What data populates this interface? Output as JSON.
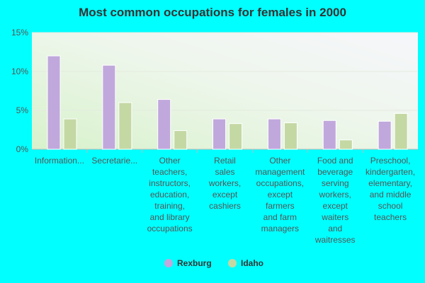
{
  "chart_data": {
    "type": "bar",
    "title": "Most common occupations for females in 2000",
    "xlabel": "",
    "ylabel": "",
    "ylim": [
      0,
      15
    ],
    "yticks": [
      0,
      5,
      10,
      15
    ],
    "ytick_labels": [
      "0%",
      "5%",
      "10%",
      "15%"
    ],
    "grid": true,
    "legend_position": "bottom-center",
    "categories": [
      [
        "Information..."
      ],
      [
        "Secretarie..."
      ],
      [
        "Other",
        "teachers,",
        "instructors,",
        "education,",
        "training,",
        "and library",
        "occupations"
      ],
      [
        "Retail",
        "sales",
        "workers,",
        "except",
        "cashiers"
      ],
      [
        "Other",
        "management",
        "occupations,",
        "except",
        "farmers",
        "and farm",
        "managers"
      ],
      [
        "Food and",
        "beverage",
        "serving",
        "workers,",
        "except",
        "waiters",
        "and",
        "waitresses"
      ],
      [
        "Preschool,",
        "kindergarten,",
        "elementary,",
        "and middle",
        "school",
        "teachers"
      ]
    ],
    "series": [
      {
        "name": "Rexburg",
        "color": "#C0A8DC",
        "values": [
          12.0,
          10.8,
          6.4,
          3.9,
          3.9,
          3.7,
          3.6
        ]
      },
      {
        "name": "Idaho",
        "color": "#C4D8A4",
        "values": [
          3.9,
          6.0,
          2.4,
          3.3,
          3.4,
          1.2,
          4.6
        ]
      }
    ]
  }
}
